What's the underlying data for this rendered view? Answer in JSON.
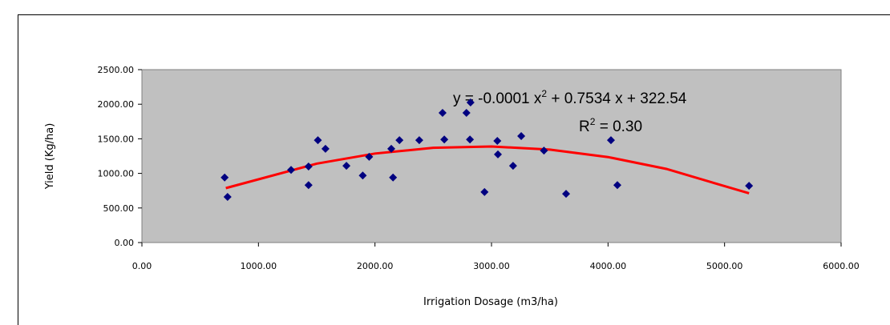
{
  "chart_data": {
    "type": "scatter",
    "xlabel": "Irrigation Dosage (m3/ha)",
    "ylabel": "Yield (Kg/ha)",
    "xlim": [
      0,
      6000
    ],
    "ylim": [
      0,
      2500
    ],
    "xticks": [
      {
        "value": 0,
        "label": "0.00"
      },
      {
        "value": 1000,
        "label": "1000.00"
      },
      {
        "value": 2000,
        "label": "2000.00"
      },
      {
        "value": 3000,
        "label": "3000.00"
      },
      {
        "value": 4000,
        "label": "4000.00"
      },
      {
        "value": 5000,
        "label": "5000.00"
      },
      {
        "value": 6000,
        "label": "6000.00"
      }
    ],
    "yticks": [
      {
        "value": 0,
        "label": "0.00"
      },
      {
        "value": 500,
        "label": "500.00"
      },
      {
        "value": 1000,
        "label": "1000.00"
      },
      {
        "value": 1500,
        "label": "1500.00"
      },
      {
        "value": 2000,
        "label": "2000.00"
      },
      {
        "value": 2500,
        "label": "2500.00"
      }
    ],
    "plot_background": "#c0c0c0",
    "color": "#000080",
    "x": [
      710,
      735,
      1280,
      1430,
      1430,
      1510,
      1575,
      1755,
      1895,
      1950,
      2140,
      2155,
      2210,
      2380,
      2580,
      2595,
      2785,
      2820,
      2815,
      2940,
      3050,
      3055,
      3185,
      3255,
      3450,
      3640,
      4025,
      4080,
      5210
    ],
    "values": [
      940,
      660,
      1050,
      1100,
      830,
      1480,
      1355,
      1110,
      970,
      1240,
      1355,
      940,
      1480,
      1480,
      1875,
      1490,
      1875,
      2025,
      1490,
      730,
      1470,
      1275,
      1110,
      1540,
      1330,
      705,
      1480,
      830,
      820
    ],
    "trendline": {
      "color": "#ff0000",
      "x": [
        720,
        1500,
        2000,
        2500,
        3000,
        3500,
        4000,
        4500,
        5210
      ],
      "values": [
        787,
        1141,
        1287,
        1370,
        1389,
        1344,
        1236,
        1065,
        712
      ]
    },
    "equation": {
      "left": "y = -0.0001 x",
      "power": "2",
      "right": " + 0.7534 x + 322.54"
    },
    "r_squared": {
      "symbol": "R",
      "power": "2",
      "value": " = 0.30"
    }
  }
}
